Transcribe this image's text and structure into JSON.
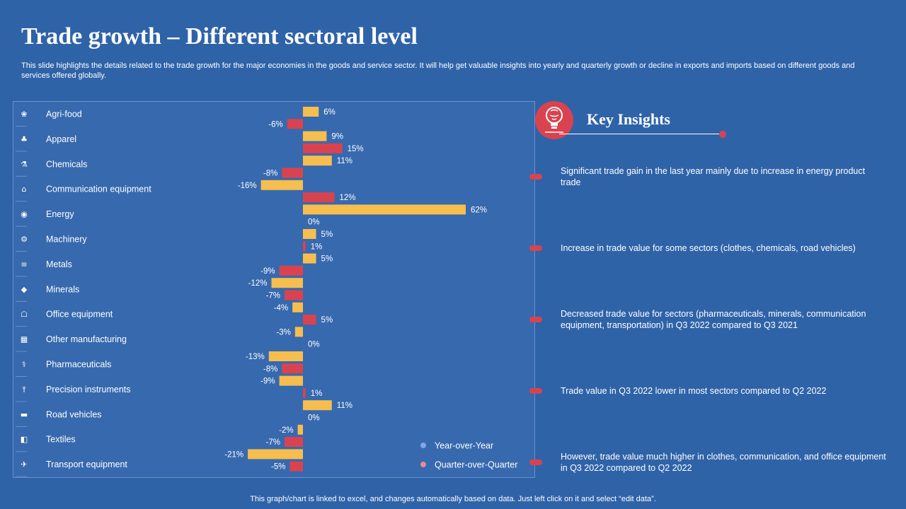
{
  "title": "Trade growth – Different sectoral level",
  "subtitle": "This slide highlights the details related to the trade growth for the major economies in the goods and service sector. It will help get valuable insights into yearly and quarterly growth or decline in exports and imports based on different goods and services offered globally.",
  "colors": {
    "yoy": "#F6BE4F",
    "qoq": "#D9434F",
    "legend_yoy_dot": "#7FA6E8",
    "legend_qoq_dot": "#E88A98",
    "background": "#2F63A8",
    "accent": "#D9434F"
  },
  "chart_data": {
    "type": "bar",
    "orientation": "horizontal",
    "categories": [
      "Agri-food",
      "Apparel",
      "Chemicals",
      "Communication equipment",
      "Energy",
      "Machinery",
      "Metals",
      "Minerals",
      "Office equipment",
      "Other manufacturing",
      "Pharmaceuticals",
      "Precision instruments",
      "Road vehicles",
      "Textiles",
      "Transport equipment"
    ],
    "category_icons": [
      "agri-food-icon",
      "apparel-icon",
      "chemicals-icon",
      "communication-equipment-icon",
      "energy-icon",
      "machinery-icon",
      "metals-icon",
      "minerals-icon",
      "office-equipment-icon",
      "other-manufacturing-icon",
      "pharmaceuticals-icon",
      "precision-instruments-icon",
      "road-vehicles-icon",
      "textiles-icon",
      "transport-equipment-icon"
    ],
    "series": [
      {
        "name": "Year-over-Year",
        "values": [
          6,
          9,
          11,
          -16,
          62,
          5,
          5,
          -12,
          -4,
          -3,
          -13,
          -9,
          11,
          -2,
          -21
        ]
      },
      {
        "name": "Quarter-over-Quarter",
        "values": [
          -6,
          15,
          -8,
          12,
          0,
          1,
          -9,
          -7,
          5,
          0,
          -8,
          1,
          0,
          -7,
          -5
        ]
      }
    ],
    "unit": "%",
    "xlim": [
      -22,
      63
    ],
    "legend": [
      "Year-over-Year",
      "Quarter-over-Quarter"
    ],
    "legend_position": "bottom-right"
  },
  "insights": {
    "title": "Key Insights",
    "items": [
      "Significant trade gain in the last year mainly due to increase in energy product trade",
      "Increase in trade value for some sectors (clothes, chemicals, road vehicles)",
      "Decreased trade value for sectors (pharmaceuticals, minerals, communication equipment, transportation) in Q3 2022 compared to Q3 2021",
      "Trade value in Q3 2022 lower in most sectors compared to Q2 2022",
      "However, trade value much higher in clothes, communication, and office equipment in Q3 2022 compared to Q2 2022"
    ]
  },
  "footer": "This graph/chart is linked to excel, and changes automatically based on data. Just left click on it and select “edit data”."
}
